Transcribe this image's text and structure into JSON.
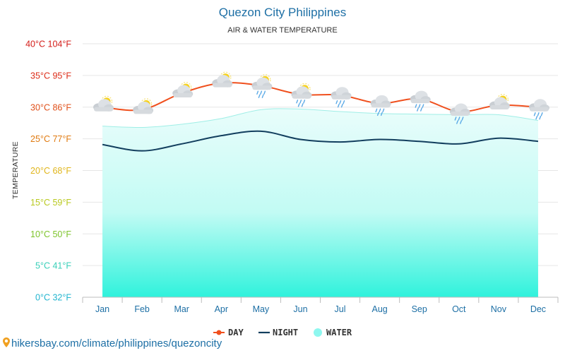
{
  "chart_data": {
    "type": "line",
    "title": "Quezon City Philippines",
    "subtitle": "AIR & WATER TEMPERATURE",
    "ylabel": "TEMPERATURE",
    "categories": [
      "Jan",
      "Feb",
      "Mar",
      "Apr",
      "May",
      "Jun",
      "Jul",
      "Aug",
      "Sep",
      "Oct",
      "Nov",
      "Dec"
    ],
    "ylim": [
      0,
      40
    ],
    "yticks": [
      {
        "value": 0,
        "label": "0°C 32°F",
        "color": "#22b5cf"
      },
      {
        "value": 5,
        "label": "5°C 41°F",
        "color": "#38cfb8"
      },
      {
        "value": 10,
        "label": "10°C 50°F",
        "color": "#7dc42b"
      },
      {
        "value": 15,
        "label": "15°C 59°F",
        "color": "#b9c91f"
      },
      {
        "value": 20,
        "label": "20°C 68°F",
        "color": "#e0b51a"
      },
      {
        "value": 25,
        "label": "25°C 77°F",
        "color": "#e07a10"
      },
      {
        "value": 30,
        "label": "30°C 86°F",
        "color": "#e0501a"
      },
      {
        "value": 35,
        "label": "35°C 95°F",
        "color": "#dc2c18"
      },
      {
        "value": 40,
        "label": "40°C 104°F",
        "color": "#d41c18"
      }
    ],
    "grid": true,
    "legend_position": "bottom",
    "series": [
      {
        "name": "DAY",
        "color": "#f0501e",
        "values": [
          30.0,
          29.6,
          32.2,
          33.8,
          33.4,
          32.0,
          31.9,
          30.6,
          31.3,
          29.3,
          30.3,
          30.0
        ]
      },
      {
        "name": "NIGHT",
        "color": "#123e5e",
        "values": [
          24.1,
          23.1,
          24.2,
          25.5,
          26.2,
          24.9,
          24.5,
          24.9,
          24.6,
          24.2,
          25.1,
          24.6
        ]
      },
      {
        "name": "WATER",
        "color": "#8ef7ef",
        "values": [
          27.0,
          26.8,
          27.3,
          28.2,
          29.6,
          29.7,
          29.3,
          29.0,
          28.9,
          28.8,
          28.8,
          27.9
        ]
      }
    ],
    "weather_icons": [
      "sun-cloud",
      "sun-cloud",
      "sun-cloud",
      "sun-cloud",
      "sun-rain-cloud",
      "sun-rain-cloud",
      "rain-cloud",
      "rain-cloud",
      "rain-cloud",
      "rain-cloud",
      "sun-cloud",
      "rain-cloud"
    ]
  },
  "source_text": "hikersbay.com/climate/philippines/quezoncity",
  "colors": {
    "axis": "#bcbcbc",
    "grid": "#e6e6e6",
    "link": "#1d6fa5"
  }
}
